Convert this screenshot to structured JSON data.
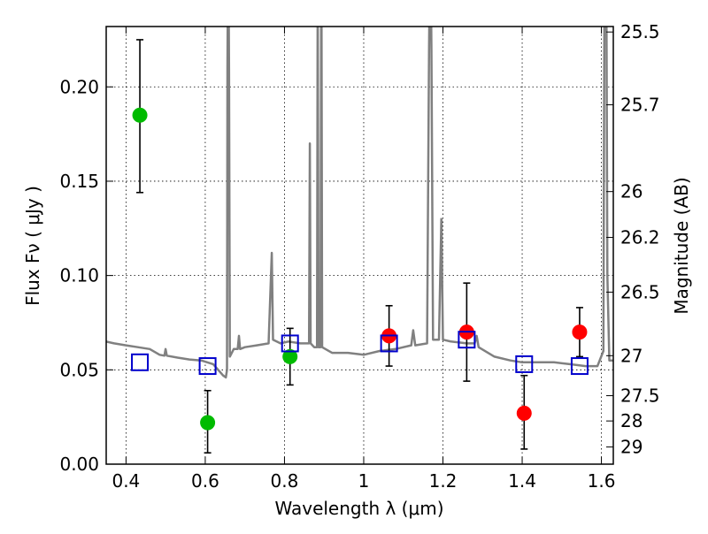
{
  "chart_data": {
    "type": "scatter",
    "xlabel": "Wavelength  λ (μm)",
    "ylabel": "Flux  Fν  ( μJy )",
    "y2label": "Magnitude (AB)",
    "xlim": [
      0.35,
      1.63
    ],
    "ylim": [
      0.0,
      0.232
    ],
    "grid": true,
    "x_ticks": [
      0.4,
      0.6,
      0.8,
      1.0,
      1.2,
      1.4,
      1.6
    ],
    "x_tick_labels": [
      "0.4",
      "0.6",
      "0.8",
      "1",
      "1.2",
      "1.4",
      "1.6"
    ],
    "y_ticks": [
      0.0,
      0.05,
      0.1,
      0.15,
      0.2
    ],
    "y_tick_labels": [
      "0.00",
      "0.05",
      "0.10",
      "0.15",
      "0.20"
    ],
    "y2_ticks": [
      {
        "label": "25.5",
        "flux": 0.2291
      },
      {
        "label": "25.7",
        "flux": 0.1905
      },
      {
        "label": "26",
        "flux": 0.1445
      },
      {
        "label": "26.2",
        "flux": 0.1202
      },
      {
        "label": "26.5",
        "flux": 0.0912
      },
      {
        "label": "27",
        "flux": 0.0575
      },
      {
        "label": "27.5",
        "flux": 0.0363
      },
      {
        "label": "28",
        "flux": 0.0229
      },
      {
        "label": "29",
        "flux": 0.0091
      }
    ],
    "series": [
      {
        "marker": "circle",
        "color": "#00bb00",
        "points": [
          {
            "x": 0.435,
            "y": 0.185,
            "yerr_low": 0.144,
            "yerr_high": 0.225
          },
          {
            "x": 0.606,
            "y": 0.022,
            "yerr_low": 0.006,
            "yerr_high": 0.039
          },
          {
            "x": 0.814,
            "y": 0.057,
            "yerr_low": 0.042,
            "yerr_high": 0.072
          }
        ]
      },
      {
        "marker": "circle",
        "color": "#ff0000",
        "points": [
          {
            "x": 1.064,
            "y": 0.068,
            "yerr_low": 0.052,
            "yerr_high": 0.084
          },
          {
            "x": 1.26,
            "y": 0.07,
            "yerr_low": 0.044,
            "yerr_high": 0.096
          },
          {
            "x": 1.405,
            "y": 0.027,
            "yerr_low": 0.008,
            "yerr_high": 0.047
          },
          {
            "x": 1.545,
            "y": 0.07,
            "yerr_low": 0.057,
            "yerr_high": 0.083
          }
        ]
      },
      {
        "marker": "square",
        "color": "#0000cc",
        "points": [
          {
            "x": 0.435,
            "y": 0.054
          },
          {
            "x": 0.606,
            "y": 0.052
          },
          {
            "x": 0.814,
            "y": 0.064
          },
          {
            "x": 1.064,
            "y": 0.064
          },
          {
            "x": 1.26,
            "y": 0.066
          },
          {
            "x": 1.405,
            "y": 0.053
          },
          {
            "x": 1.545,
            "y": 0.052
          }
        ]
      }
    ],
    "model_spectrum": {
      "color": "#808080",
      "points": [
        [
          0.35,
          0.065
        ],
        [
          0.37,
          0.064
        ],
        [
          0.4,
          0.063
        ],
        [
          0.43,
          0.062
        ],
        [
          0.46,
          0.061
        ],
        [
          0.485,
          0.058
        ],
        [
          0.497,
          0.0575
        ],
        [
          0.5,
          0.061
        ],
        [
          0.503,
          0.0575
        ],
        [
          0.53,
          0.0565
        ],
        [
          0.56,
          0.0555
        ],
        [
          0.59,
          0.055
        ],
        [
          0.62,
          0.053
        ],
        [
          0.645,
          0.047
        ],
        [
          0.652,
          0.046
        ],
        [
          0.655,
          0.05
        ],
        [
          0.656,
          0.21
        ],
        [
          0.658,
          0.29
        ],
        [
          0.66,
          0.21
        ],
        [
          0.662,
          0.057
        ],
        [
          0.672,
          0.061
        ],
        [
          0.682,
          0.061
        ],
        [
          0.685,
          0.068
        ],
        [
          0.688,
          0.061
        ],
        [
          0.7,
          0.062
        ],
        [
          0.73,
          0.063
        ],
        [
          0.76,
          0.064
        ],
        [
          0.768,
          0.112
        ],
        [
          0.771,
          0.066
        ],
        [
          0.79,
          0.064
        ],
        [
          0.81,
          0.065
        ],
        [
          0.84,
          0.064
        ],
        [
          0.862,
          0.064
        ],
        [
          0.864,
          0.17
        ],
        [
          0.866,
          0.064
        ],
        [
          0.875,
          0.062
        ],
        [
          0.882,
          0.062
        ],
        [
          0.884,
          0.26
        ],
        [
          0.886,
          0.062
        ],
        [
          0.891,
          0.062
        ],
        [
          0.893,
          0.29
        ],
        [
          0.895,
          0.062
        ],
        [
          0.92,
          0.059
        ],
        [
          0.96,
          0.059
        ],
        [
          1.0,
          0.058
        ],
        [
          1.04,
          0.06
        ],
        [
          1.08,
          0.061
        ],
        [
          1.12,
          0.063
        ],
        [
          1.125,
          0.071
        ],
        [
          1.13,
          0.063
        ],
        [
          1.16,
          0.064
        ],
        [
          1.165,
          0.22
        ],
        [
          1.168,
          0.29
        ],
        [
          1.171,
          0.22
        ],
        [
          1.175,
          0.066
        ],
        [
          1.19,
          0.066
        ],
        [
          1.196,
          0.13
        ],
        [
          1.2,
          0.066
        ],
        [
          1.22,
          0.065
        ],
        [
          1.26,
          0.064
        ],
        [
          1.28,
          0.064
        ],
        [
          1.285,
          0.068
        ],
        [
          1.29,
          0.062
        ],
        [
          1.33,
          0.057
        ],
        [
          1.37,
          0.055
        ],
        [
          1.4,
          0.054
        ],
        [
          1.44,
          0.054
        ],
        [
          1.48,
          0.054
        ],
        [
          1.52,
          0.053
        ],
        [
          1.56,
          0.052
        ],
        [
          1.59,
          0.052
        ],
        [
          1.605,
          0.06
        ],
        [
          1.608,
          0.29
        ],
        [
          1.612,
          0.29
        ],
        [
          1.615,
          0.1
        ],
        [
          1.62,
          0.055
        ],
        [
          1.63,
          0.055
        ]
      ]
    }
  }
}
